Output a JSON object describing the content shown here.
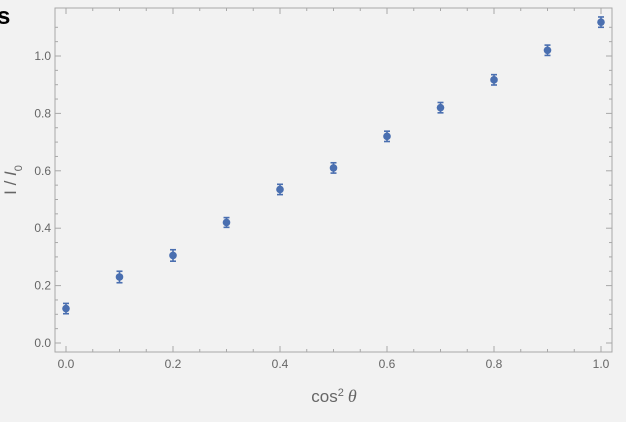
{
  "panel_letter": "s",
  "chart_data": {
    "type": "scatter",
    "title": "",
    "xlabel": "cos² θ",
    "ylabel": "I / I₀",
    "xlim": [
      -0.02,
      1.02
    ],
    "ylim": [
      -0.02,
      1.15
    ],
    "x_ticks": [
      "0.0",
      "0.2",
      "0.4",
      "0.6",
      "0.8",
      "1.0"
    ],
    "y_ticks": [
      "0.0",
      "0.2",
      "0.4",
      "0.6",
      "0.8",
      "1.0"
    ],
    "grid": false,
    "legend": "none",
    "colors": {
      "marker": "#4a6fb0",
      "background": "#f2f2f2",
      "frame": "#a8a8a8"
    },
    "series": [
      {
        "x": [
          0.0,
          0.1,
          0.2,
          0.3,
          0.4,
          0.5,
          0.6,
          0.7,
          0.8,
          0.9,
          1.0
        ],
        "y": [
          0.12,
          0.23,
          0.305,
          0.42,
          0.535,
          0.61,
          0.72,
          0.82,
          0.917,
          1.02,
          1.118
        ],
        "yerr": [
          0.018,
          0.02,
          0.02,
          0.017,
          0.018,
          0.018,
          0.018,
          0.018,
          0.018,
          0.018,
          0.018
        ]
      }
    ]
  }
}
